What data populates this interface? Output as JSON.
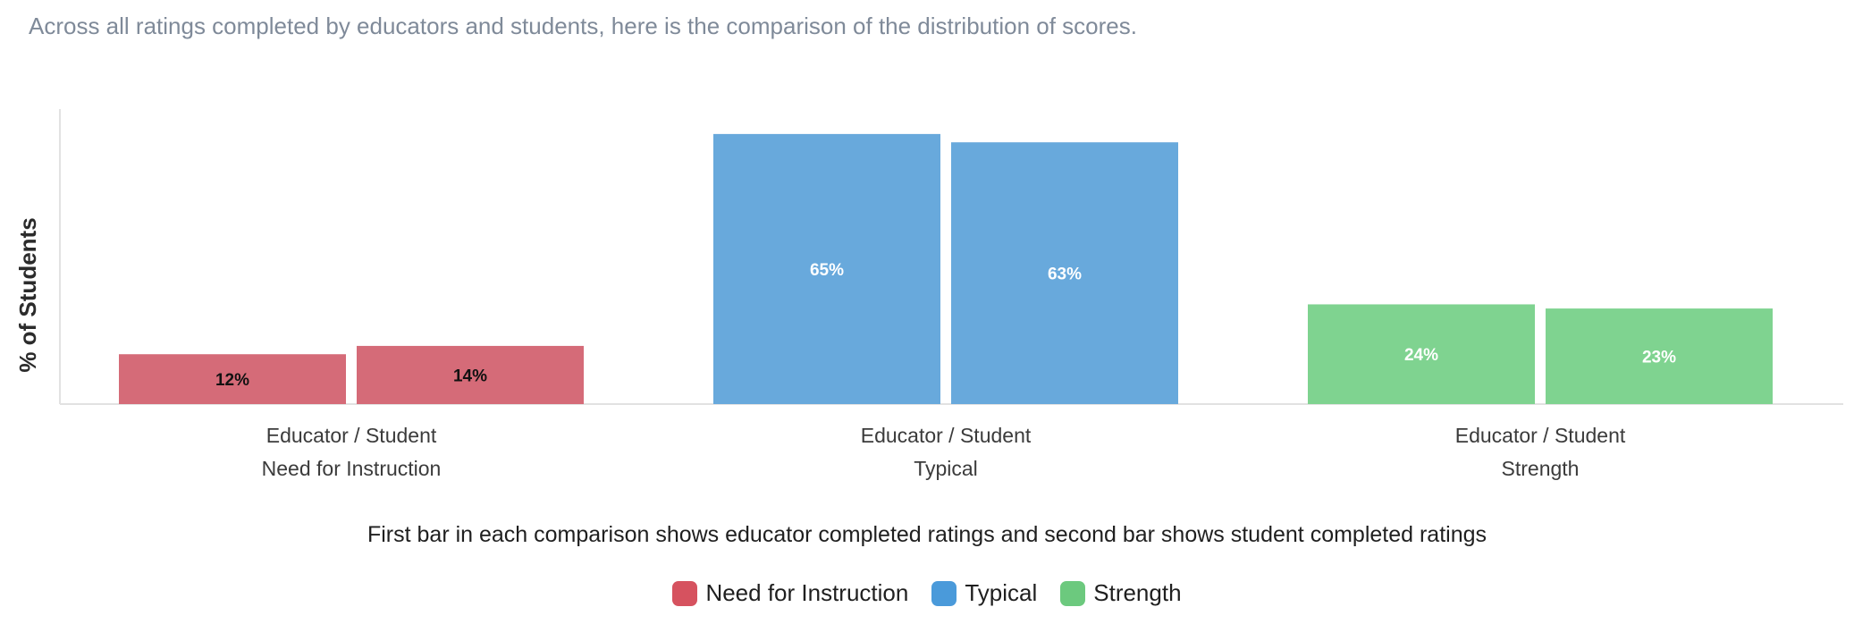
{
  "intro_text": "Across all ratings completed by educators and students, here is the comparison of the distribution of scores.",
  "caption": "First bar in each comparison shows educator completed ratings and second bar shows student completed ratings",
  "legend": [
    {
      "label": "Need for Instruction",
      "color": "#d6525f"
    },
    {
      "label": "Typical",
      "color": "#4a9ada"
    },
    {
      "label": "Strength",
      "color": "#6cc97e"
    }
  ],
  "chart_data": {
    "type": "bar",
    "ylabel": "% of Students",
    "ylim": [
      0,
      71
    ],
    "grid": false,
    "legend_position": "bottom",
    "categories": [
      "Need for Instruction",
      "Typical",
      "Strength"
    ],
    "group_sublabel": "Educator / Student",
    "series": [
      {
        "name": "Educator",
        "values": [
          12,
          65,
          24
        ]
      },
      {
        "name": "Student",
        "values": [
          14,
          63,
          23
        ]
      }
    ],
    "data_labels": [
      [
        "12%",
        "14%"
      ],
      [
        "65%",
        "63%"
      ],
      [
        "24%",
        "23%"
      ]
    ],
    "bar_colors": [
      "#d56b78",
      "#68a9dc",
      "#7fd390"
    ],
    "label_colors": [
      "#111111",
      "#ffffff",
      "#ffffff"
    ]
  }
}
